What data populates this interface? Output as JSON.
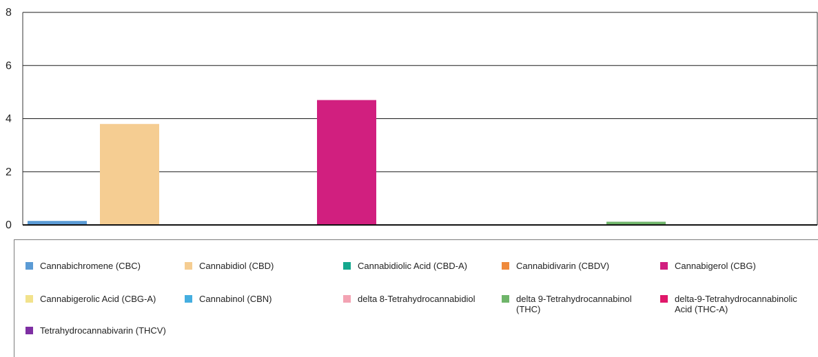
{
  "chart_data": {
    "type": "bar",
    "ylim": [
      0,
      8
    ],
    "yticks": [
      "0",
      "2",
      "4",
      "6",
      "8"
    ],
    "grid": true,
    "legend_position": "bottom",
    "series": [
      {
        "name": "Cannabichromene (CBC)",
        "value": 0.15,
        "color": "#5b9bd5"
      },
      {
        "name": "Cannabidiol (CBD)",
        "value": 3.8,
        "color": "#f5cd92"
      },
      {
        "name": "Cannabidiolic Acid (CBD-A)",
        "value": 0,
        "color": "#14a88e"
      },
      {
        "name": "Cannabidivarin (CBDV)",
        "value": 0.02,
        "color": "#ef8a3c"
      },
      {
        "name": "Cannabigerol (CBG)",
        "value": 4.7,
        "color": "#d11f7f"
      },
      {
        "name": "Cannabigerolic Acid (CBG-A)",
        "value": 0,
        "color": "#f2e28c"
      },
      {
        "name": "Cannabinol (CBN)",
        "value": 0,
        "color": "#45aee0"
      },
      {
        "name": "delta 8-Tetrahydrocannabidiol",
        "value": 0,
        "color": "#f3a3b3"
      },
      {
        "name": "delta 9-Tetrahydrocannabinol (THC)",
        "value": 0.12,
        "color": "#6fb56a"
      },
      {
        "name": "delta-9-Tetrahydrocannabinolic Acid (THC-A)",
        "value": 0,
        "color": "#e0186a"
      },
      {
        "name": "Tetrahydrocannabivarin (THCV)",
        "value": 0,
        "color": "#7e2fa3"
      }
    ]
  }
}
